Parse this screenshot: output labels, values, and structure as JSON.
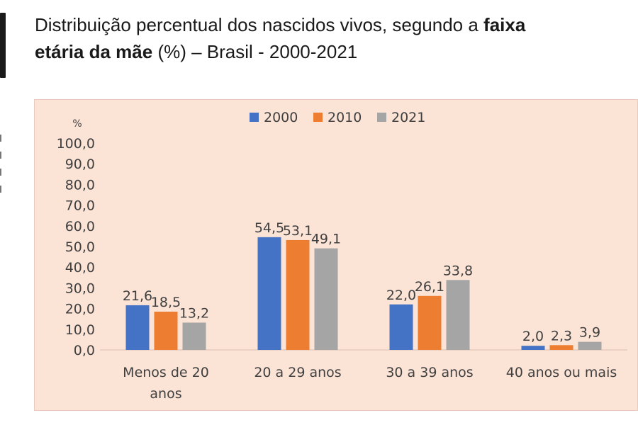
{
  "title": {
    "part1": "Distribuição percentual dos nascidos vivos, segundo a ",
    "bold1": "faixa",
    "bold2": "etária da mãe",
    "part2": " (%) – Brasil - 2000-2021"
  },
  "chart_data": {
    "type": "bar",
    "ylabel": "%",
    "ylim": [
      0,
      100
    ],
    "yticks": [
      "100,0",
      "90,0",
      "80,0",
      "70,0",
      "60,0",
      "50,0",
      "40,0",
      "30,0",
      "20,0",
      "10,0",
      "0,0"
    ],
    "ytick_values": [
      100,
      90,
      80,
      70,
      60,
      50,
      40,
      30,
      20,
      10,
      0
    ],
    "categories": [
      [
        "Menos de 20",
        "anos"
      ],
      [
        "20 a 29 anos"
      ],
      [
        "30 a 39 anos"
      ],
      [
        "40 anos ou mais"
      ]
    ],
    "series": [
      {
        "name": "2000",
        "color": "#4472c4",
        "values": [
          21.6,
          54.5,
          22.0,
          2.0
        ],
        "labels": [
          "21,6",
          "54,5",
          "22,0",
          "2,0"
        ]
      },
      {
        "name": "2010",
        "color": "#ed7d31",
        "values": [
          18.5,
          53.1,
          26.1,
          2.3
        ],
        "labels": [
          "18,5",
          "53,1",
          "26,1",
          "2,3"
        ]
      },
      {
        "name": "2021",
        "color": "#a5a5a5",
        "values": [
          13.2,
          49.1,
          33.8,
          3.9
        ],
        "labels": [
          "13,2",
          "49,1",
          "33,8",
          "3,9"
        ]
      }
    ],
    "legend_position": "top",
    "grid": false
  }
}
